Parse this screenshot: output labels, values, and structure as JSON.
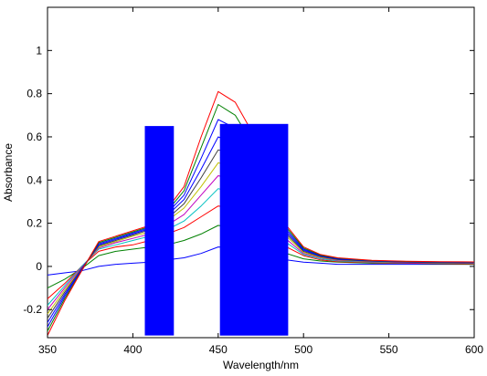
{
  "chart_data": {
    "type": "line",
    "xlabel": "Wavelength/nm",
    "ylabel": "Absorbance",
    "xlim": [
      350,
      600
    ],
    "ylim": [
      -0.33,
      1.2
    ],
    "x_ticks": [
      350,
      400,
      450,
      500,
      550,
      600
    ],
    "y_ticks": [
      -0.2,
      0,
      0.2,
      0.4,
      0.6,
      0.8,
      1
    ],
    "y_tick_labels": [
      "-0.2",
      "0",
      "0.2",
      "0.4",
      "0.6",
      "0.8",
      "1"
    ],
    "grid": false,
    "legend": "none",
    "x": [
      350,
      360,
      370,
      380,
      390,
      400,
      410,
      420,
      430,
      440,
      450,
      460,
      470,
      480,
      490,
      500,
      510,
      520,
      540,
      560,
      580,
      600
    ],
    "series": [
      {
        "color": "#0000ff",
        "values": [
          -0.04,
          -0.03,
          -0.02,
          0.0,
          0.01,
          0.015,
          0.02,
          0.03,
          0.04,
          0.06,
          0.09,
          0.085,
          0.07,
          0.05,
          0.03,
          0.02,
          0.015,
          0.01,
          0.01,
          0.01,
          0.01,
          0.01
        ]
      },
      {
        "color": "#008000",
        "values": [
          -0.1,
          -0.06,
          -0.01,
          0.05,
          0.07,
          0.08,
          0.09,
          0.1,
          0.12,
          0.15,
          0.19,
          0.18,
          0.15,
          0.11,
          0.06,
          0.035,
          0.025,
          0.02,
          0.015,
          0.015,
          0.012,
          0.01
        ]
      },
      {
        "color": "#ff0000",
        "values": [
          -0.15,
          -0.08,
          0.0,
          0.07,
          0.09,
          0.1,
          0.12,
          0.15,
          0.18,
          0.23,
          0.28,
          0.27,
          0.23,
          0.17,
          0.09,
          0.05,
          0.03,
          0.022,
          0.018,
          0.015,
          0.013,
          0.012
        ]
      },
      {
        "color": "#00c0c0",
        "values": [
          -0.18,
          -0.09,
          0.0,
          0.08,
          0.1,
          0.12,
          0.14,
          0.17,
          0.21,
          0.28,
          0.36,
          0.34,
          0.29,
          0.21,
          0.11,
          0.055,
          0.035,
          0.025,
          0.02,
          0.017,
          0.015,
          0.014
        ]
      },
      {
        "color": "#c000c0",
        "values": [
          -0.2,
          -0.1,
          -0.005,
          0.085,
          0.11,
          0.13,
          0.15,
          0.19,
          0.24,
          0.33,
          0.42,
          0.4,
          0.34,
          0.24,
          0.125,
          0.06,
          0.04,
          0.028,
          0.022,
          0.018,
          0.016,
          0.015
        ]
      },
      {
        "color": "#c0c000",
        "values": [
          -0.22,
          -0.11,
          -0.01,
          0.09,
          0.115,
          0.14,
          0.16,
          0.21,
          0.27,
          0.37,
          0.48,
          0.46,
          0.39,
          0.27,
          0.14,
          0.065,
          0.042,
          0.03,
          0.023,
          0.019,
          0.017,
          0.016
        ]
      },
      {
        "color": "#404040",
        "values": [
          -0.24,
          -0.12,
          -0.01,
          0.095,
          0.12,
          0.145,
          0.17,
          0.22,
          0.29,
          0.41,
          0.54,
          0.52,
          0.43,
          0.3,
          0.15,
          0.07,
          0.045,
          0.032,
          0.024,
          0.02,
          0.018,
          0.017
        ]
      },
      {
        "color": "#0000ff",
        "values": [
          -0.26,
          -0.13,
          -0.015,
          0.1,
          0.125,
          0.15,
          0.175,
          0.235,
          0.31,
          0.45,
          0.6,
          0.57,
          0.47,
          0.33,
          0.16,
          0.075,
          0.048,
          0.034,
          0.025,
          0.021,
          0.019,
          0.018
        ]
      },
      {
        "color": "#0000ff",
        "values": [
          -0.28,
          -0.14,
          -0.015,
          0.105,
          0.13,
          0.155,
          0.18,
          0.245,
          0.33,
          0.5,
          0.68,
          0.64,
          0.52,
          0.36,
          0.17,
          0.08,
          0.05,
          0.036,
          0.026,
          0.022,
          0.02,
          0.019
        ]
      },
      {
        "color": "#008000",
        "values": [
          -0.3,
          -0.15,
          -0.02,
          0.11,
          0.135,
          0.16,
          0.185,
          0.255,
          0.35,
          0.55,
          0.75,
          0.7,
          0.57,
          0.39,
          0.18,
          0.085,
          0.052,
          0.038,
          0.027,
          0.023,
          0.021,
          0.02
        ]
      },
      {
        "color": "#ff0000",
        "values": [
          -0.32,
          -0.16,
          -0.02,
          0.115,
          0.14,
          0.165,
          0.19,
          0.265,
          0.37,
          0.6,
          0.81,
          0.76,
          0.62,
          0.42,
          0.19,
          0.09,
          0.055,
          0.04,
          0.028,
          0.024,
          0.022,
          0.021
        ]
      }
    ],
    "overlays": [
      {
        "x0": 407,
        "x1": 424,
        "y0": -0.32,
        "y1": 0.65,
        "color": "#0000ff"
      },
      {
        "x0": 451,
        "x1": 491,
        "y0": -0.32,
        "y1": 0.66,
        "color": "#0000ff"
      }
    ]
  }
}
